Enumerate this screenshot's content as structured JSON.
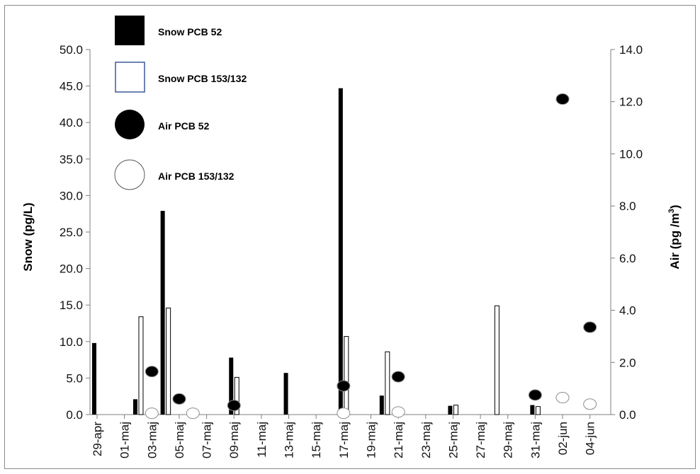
{
  "chart_data": {
    "type": "bar",
    "left_axis": {
      "title": "Snow (pg/L)",
      "range": [
        0,
        50
      ],
      "ticks": [
        "0.0",
        "5.0",
        "10.0",
        "15.0",
        "20.0",
        "25.0",
        "30.0",
        "35.0",
        "40.0",
        "45.0",
        "50.0"
      ]
    },
    "right_axis": {
      "title": "Air (pg /m",
      "title_sup": "3",
      "title_end": ")",
      "range": [
        0,
        14
      ],
      "ticks": [
        "0.0",
        "2.0",
        "4.0",
        "6.0",
        "8.0",
        "10.0",
        "12.0",
        "14.0"
      ]
    },
    "x_tick_labels": [
      "29-apr",
      "01-maj",
      "03-maj",
      "05-maj",
      "07-maj",
      "09-maj",
      "11-maj",
      "13-maj",
      "15-maj",
      "17-maj",
      "19-maj",
      "21-maj",
      "23-maj",
      "25-maj",
      "27-maj",
      "29-maj",
      "31-maj",
      "02-jun",
      "04-jun"
    ],
    "x_day_range": [
      0,
      37
    ],
    "legend": [
      {
        "label": "Snow PCB 52",
        "symbol": "bar-filled"
      },
      {
        "label": "Snow PCB 153/132",
        "symbol": "bar-open"
      },
      {
        "label": "Air PCB 52",
        "symbol": "circle-filled"
      },
      {
        "label": "Air PCB 153/132",
        "symbol": "circle-open"
      }
    ],
    "series": [
      {
        "name": "Snow PCB 52",
        "axis": "left",
        "kind": "bar",
        "color": "#000000",
        "points": [
          {
            "x": 29,
            "y": 9.8
          },
          {
            "x": 32,
            "y": 2.1
          },
          {
            "x": 34,
            "y": 27.9
          },
          {
            "x": 39,
            "y": 7.8
          },
          {
            "x": 43,
            "y": 5.7
          },
          {
            "x": 47,
            "y": 44.7
          },
          {
            "x": 50,
            "y": 2.6
          },
          {
            "x": 55,
            "y": 1.2
          },
          {
            "x": 61,
            "y": 1.3
          }
        ]
      },
      {
        "name": "Snow PCB 153/132",
        "axis": "left",
        "kind": "bar",
        "color": "#ffffff",
        "points": [
          {
            "x": 32,
            "y": 13.4
          },
          {
            "x": 34,
            "y": 14.6
          },
          {
            "x": 39,
            "y": 5.1
          },
          {
            "x": 47,
            "y": 10.7
          },
          {
            "x": 50,
            "y": 8.6
          },
          {
            "x": 55,
            "y": 1.3
          },
          {
            "x": 58,
            "y": 14.9
          },
          {
            "x": 61,
            "y": 1.1
          }
        ]
      },
      {
        "name": "Air PCB 52",
        "axis": "right",
        "kind": "point",
        "color": "#000000",
        "points": [
          {
            "x": 33,
            "y": 1.65
          },
          {
            "x": 35,
            "y": 0.6
          },
          {
            "x": 39,
            "y": 0.35
          },
          {
            "x": 47,
            "y": 1.1
          },
          {
            "x": 51,
            "y": 1.45
          },
          {
            "x": 61,
            "y": 0.75
          },
          {
            "x": 63,
            "y": 12.1
          },
          {
            "x": 65,
            "y": 3.35
          }
        ]
      },
      {
        "name": "Air PCB 153/132",
        "axis": "right",
        "kind": "point",
        "color": "#ffffff",
        "points": [
          {
            "x": 33,
            "y": 0.05
          },
          {
            "x": 36,
            "y": 0.05
          },
          {
            "x": 47,
            "y": 0.05
          },
          {
            "x": 51,
            "y": 0.1
          },
          {
            "x": 63,
            "y": 0.65
          },
          {
            "x": 65,
            "y": 0.4
          }
        ]
      }
    ]
  }
}
